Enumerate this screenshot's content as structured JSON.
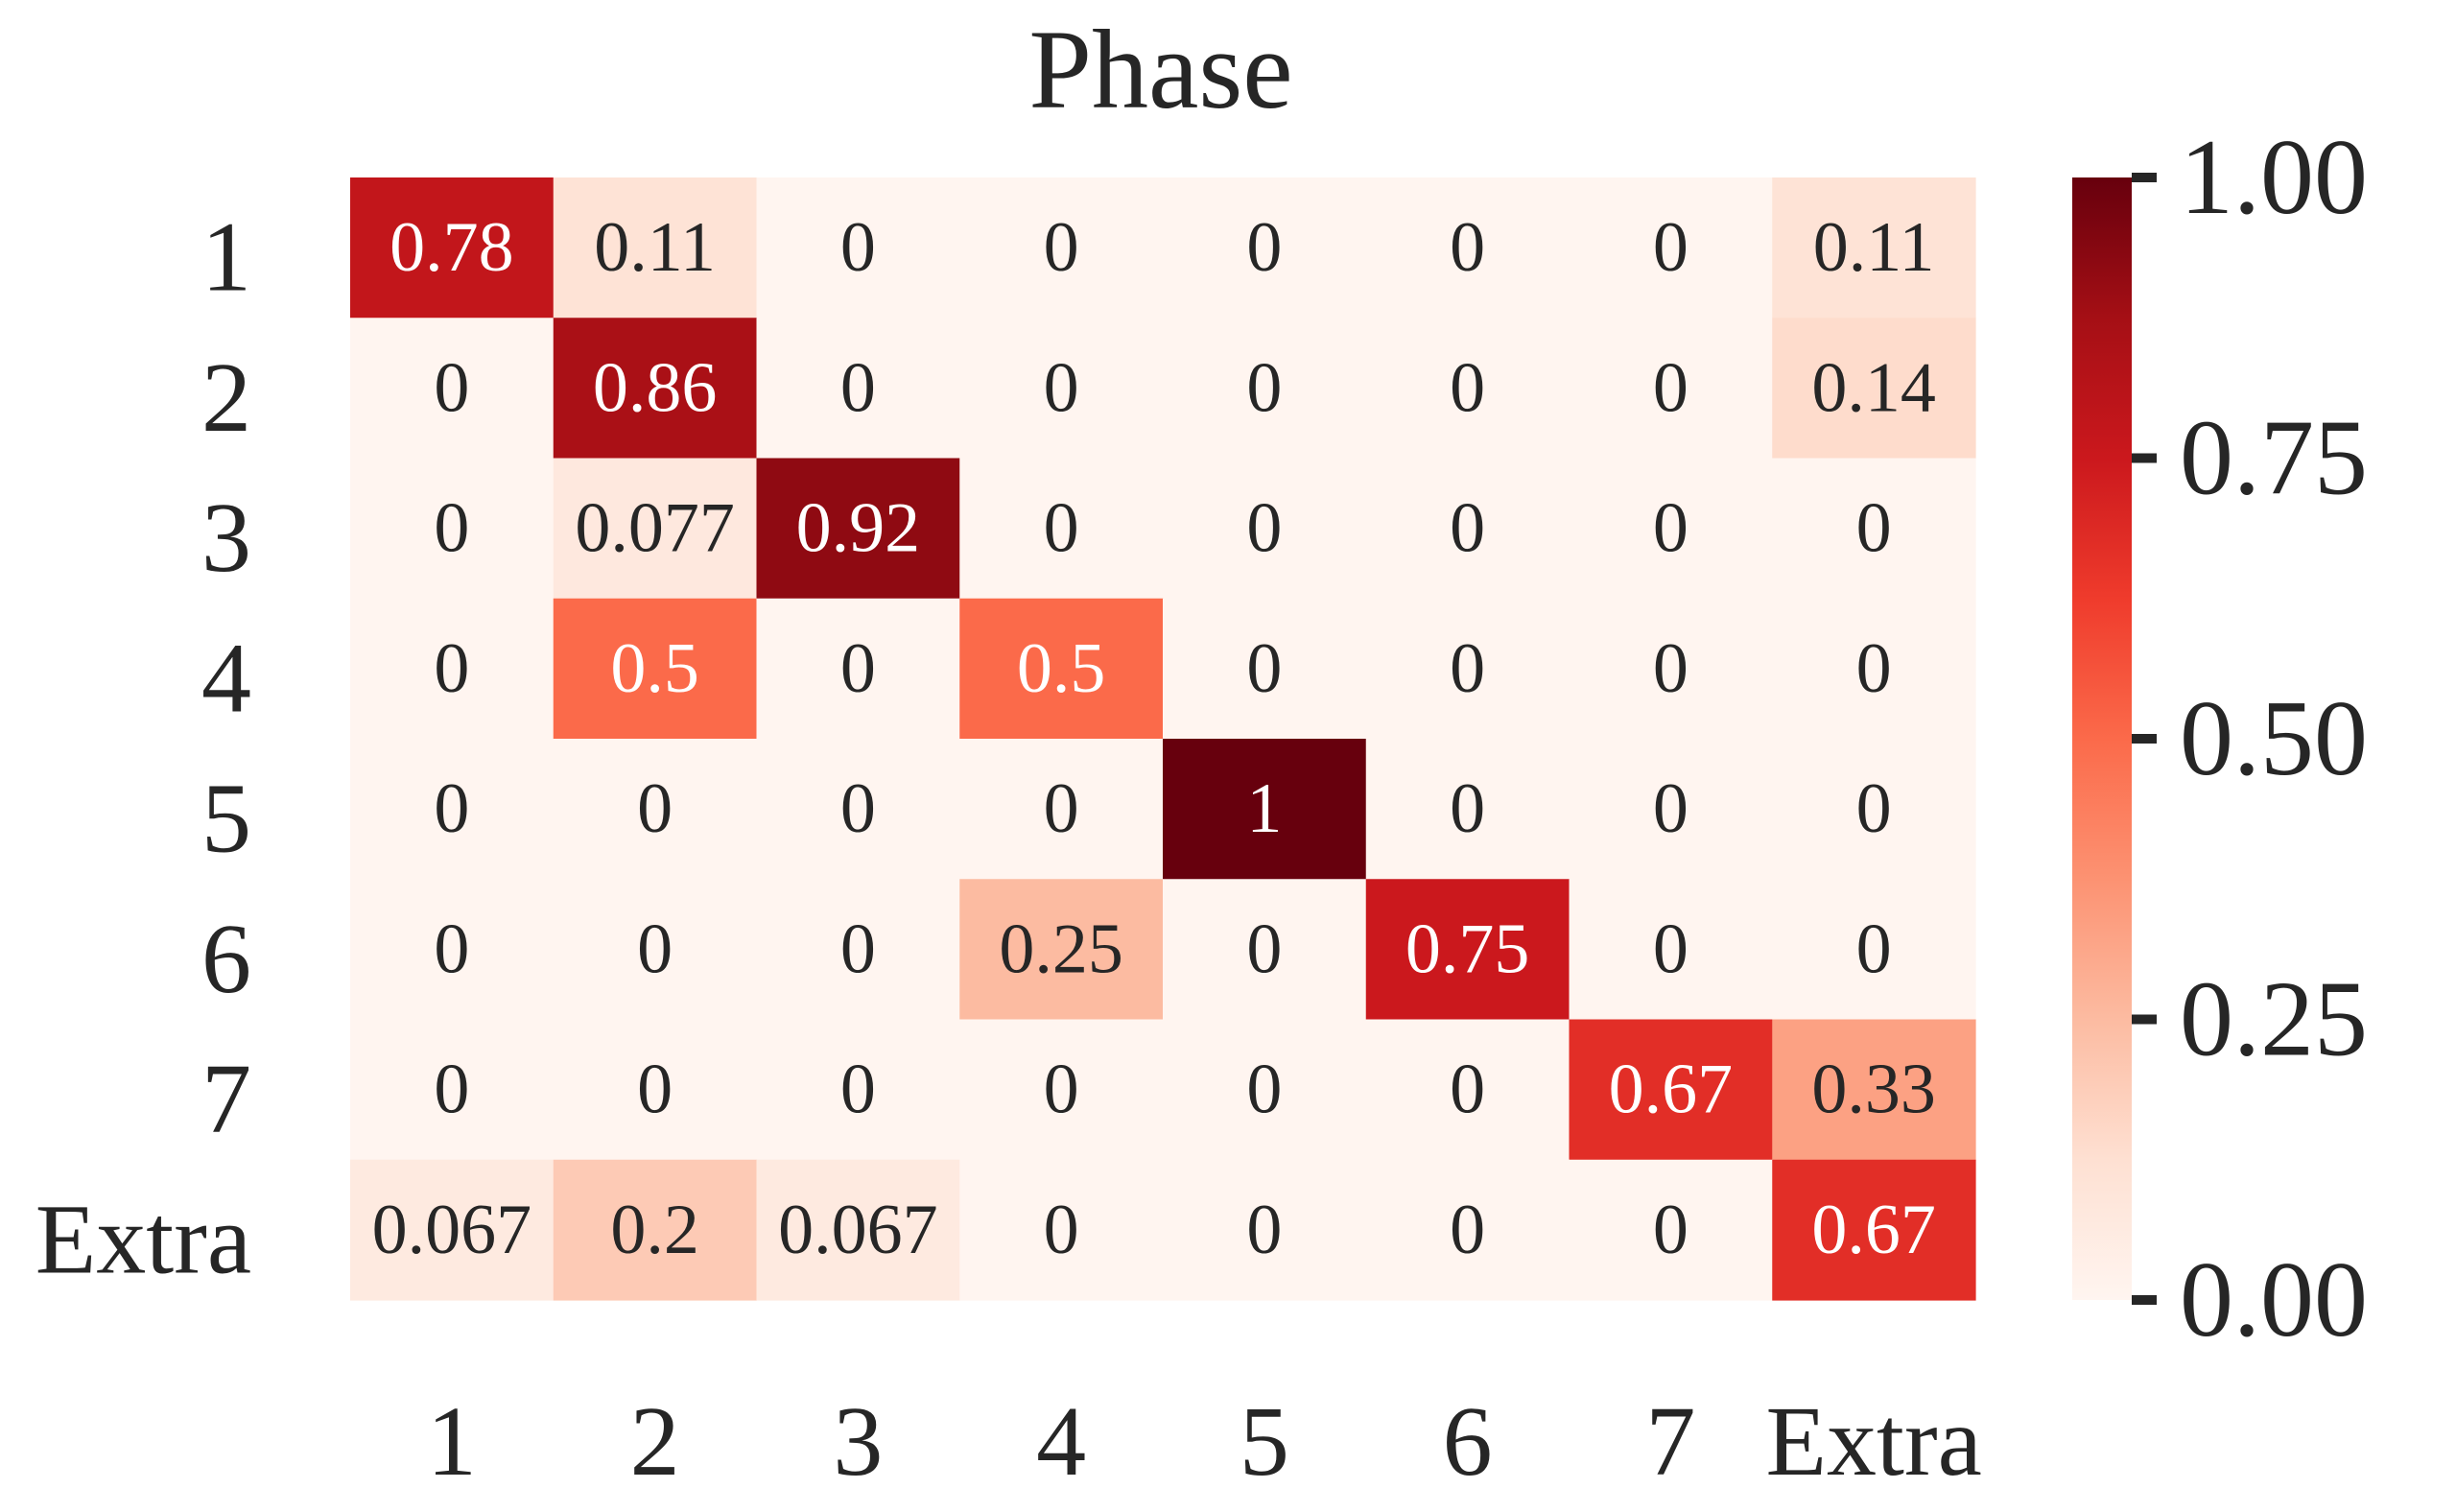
{
  "chart_data": {
    "type": "heatmap",
    "title": "Phase",
    "xlabel": "",
    "ylabel": "",
    "x_categories": [
      "1",
      "2",
      "3",
      "4",
      "5",
      "6",
      "7",
      "Extra"
    ],
    "y_categories": [
      "1",
      "2",
      "3",
      "4",
      "5",
      "6",
      "7",
      "Extra"
    ],
    "values": [
      [
        0.78,
        0.11,
        0,
        0,
        0,
        0,
        0,
        0.11
      ],
      [
        0,
        0.86,
        0,
        0,
        0,
        0,
        0,
        0.14
      ],
      [
        0,
        0.077,
        0.92,
        0,
        0,
        0,
        0,
        0
      ],
      [
        0,
        0.5,
        0,
        0.5,
        0,
        0,
        0,
        0
      ],
      [
        0,
        0,
        0,
        0,
        1,
        0,
        0,
        0
      ],
      [
        0,
        0,
        0,
        0.25,
        0,
        0.75,
        0,
        0
      ],
      [
        0,
        0,
        0,
        0,
        0,
        0,
        0.67,
        0.33
      ],
      [
        0.067,
        0.2,
        0.067,
        0,
        0,
        0,
        0,
        0.67
      ]
    ],
    "cell_labels": [
      [
        "0.78",
        "0.11",
        "0",
        "0",
        "0",
        "0",
        "0",
        "0.11"
      ],
      [
        "0",
        "0.86",
        "0",
        "0",
        "0",
        "0",
        "0",
        "0.14"
      ],
      [
        "0",
        "0.077",
        "0.92",
        "0",
        "0",
        "0",
        "0",
        "0"
      ],
      [
        "0",
        "0.5",
        "0",
        "0.5",
        "0",
        "0",
        "0",
        "0"
      ],
      [
        "0",
        "0",
        "0",
        "0",
        "1",
        "0",
        "0",
        "0"
      ],
      [
        "0",
        "0",
        "0",
        "0.25",
        "0",
        "0.75",
        "0",
        "0"
      ],
      [
        "0",
        "0",
        "0",
        "0",
        "0",
        "0",
        "0.67",
        "0.33"
      ],
      [
        "0.067",
        "0.2",
        "0.067",
        "0",
        "0",
        "0",
        "0",
        "0.67"
      ]
    ],
    "vmin": 0,
    "vmax": 1,
    "colormap": "Reds",
    "colormap_stops": [
      "#fff5f0",
      "#fee0d2",
      "#fcbba1",
      "#fc9272",
      "#fb6a4a",
      "#ef3b2c",
      "#cb181d",
      "#a50f15",
      "#67000d"
    ],
    "colorbar": {
      "ticks": [
        0,
        0.25,
        0.5,
        0.75,
        1.0
      ],
      "tick_labels": [
        "0.00",
        "0.25",
        "0.50",
        "0.75",
        "1.00"
      ]
    },
    "text_color_dark": "#262626",
    "text_color_light": "#ffffff",
    "grid": false
  }
}
